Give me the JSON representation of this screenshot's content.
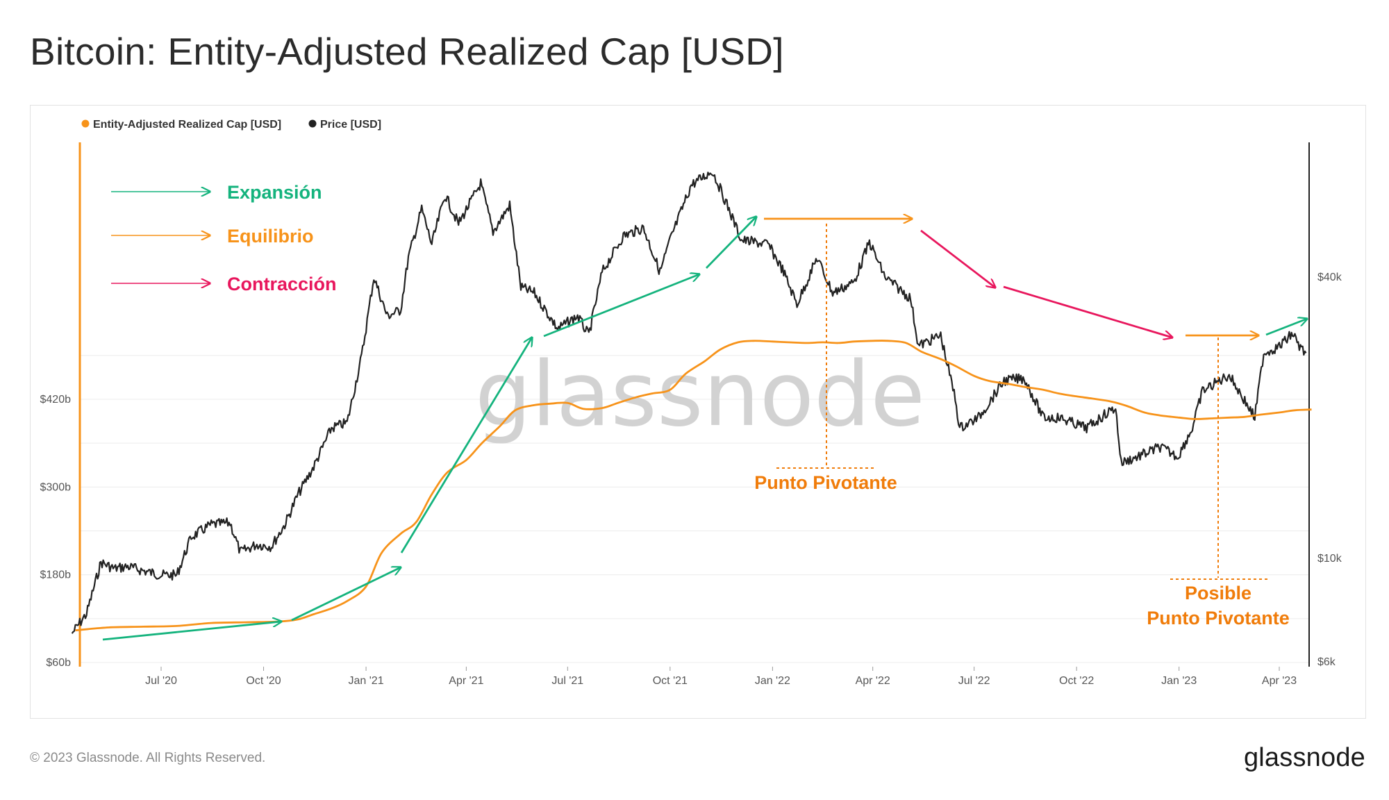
{
  "title": "Bitcoin: Entity-Adjusted Realized Cap [USD]",
  "footer": "© 2023 Glassnode. All Rights Reserved.",
  "brand": "glassnode",
  "watermark": "glassnode",
  "colors": {
    "cap": "#f7931a",
    "price": "#222222",
    "expansion": "#14b37d",
    "equilibrium": "#f7931a",
    "contraction": "#e8175d",
    "annotation": "#f07c0a"
  },
  "chart_data": {
    "type": "line",
    "legend": [
      "Entity-Adjusted Realized Cap [USD]",
      "Price [USD]"
    ],
    "legend_position": "top-left",
    "x_ticks": [
      "Jul '20",
      "Oct '20",
      "Jan '21",
      "Apr '21",
      "Jul '21",
      "Oct '21",
      "Jan '22",
      "Apr '22",
      "Jul '22",
      "Oct '22",
      "Jan '23",
      "Apr '23"
    ],
    "y_left_ticks": [
      "$60b",
      "$180b",
      "$300b",
      "$420b"
    ],
    "y_right_ticks": [
      "$6k",
      "$10k",
      "$40k"
    ],
    "y_left_scale": "linear",
    "y_right_scale": "log",
    "grid": true,
    "series": [
      {
        "name": "Entity-Adjusted Realized Cap [USD]",
        "axis": "left",
        "unit": "USD billions",
        "points": [
          [
            "2020-04-15",
            104
          ],
          [
            "2020-05-15",
            108
          ],
          [
            "2020-06-15",
            109
          ],
          [
            "2020-07-15",
            110
          ],
          [
            "2020-08-15",
            114
          ],
          [
            "2020-09-15",
            115
          ],
          [
            "2020-10-15",
            116
          ],
          [
            "2020-11-01",
            119
          ],
          [
            "2020-11-15",
            126
          ],
          [
            "2020-12-01",
            134
          ],
          [
            "2020-12-15",
            144
          ],
          [
            "2021-01-01",
            164
          ],
          [
            "2021-01-15",
            210
          ],
          [
            "2021-02-01",
            236
          ],
          [
            "2021-02-15",
            252
          ],
          [
            "2021-03-01",
            290
          ],
          [
            "2021-03-15",
            320
          ],
          [
            "2021-04-01",
            337
          ],
          [
            "2021-04-15",
            360
          ],
          [
            "2021-05-01",
            383
          ],
          [
            "2021-05-15",
            405
          ],
          [
            "2021-06-01",
            412
          ],
          [
            "2021-06-15",
            414
          ],
          [
            "2021-07-01",
            415
          ],
          [
            "2021-07-15",
            407
          ],
          [
            "2021-08-01",
            408
          ],
          [
            "2021-08-15",
            415
          ],
          [
            "2021-09-01",
            423
          ],
          [
            "2021-09-15",
            428
          ],
          [
            "2021-10-01",
            433
          ],
          [
            "2021-10-15",
            455
          ],
          [
            "2021-11-01",
            472
          ],
          [
            "2021-11-15",
            488
          ],
          [
            "2021-12-01",
            498
          ],
          [
            "2021-12-15",
            500
          ],
          [
            "2022-01-01",
            499
          ],
          [
            "2022-01-15",
            498
          ],
          [
            "2022-02-01",
            497
          ],
          [
            "2022-02-15",
            498
          ],
          [
            "2022-03-01",
            497
          ],
          [
            "2022-03-15",
            499
          ],
          [
            "2022-04-01",
            500
          ],
          [
            "2022-04-15",
            500
          ],
          [
            "2022-05-01",
            497
          ],
          [
            "2022-05-15",
            485
          ],
          [
            "2022-06-01",
            475
          ],
          [
            "2022-06-15",
            465
          ],
          [
            "2022-07-01",
            452
          ],
          [
            "2022-07-15",
            445
          ],
          [
            "2022-08-01",
            441
          ],
          [
            "2022-08-15",
            437
          ],
          [
            "2022-09-01",
            433
          ],
          [
            "2022-09-15",
            428
          ],
          [
            "2022-10-01",
            424
          ],
          [
            "2022-10-15",
            421
          ],
          [
            "2022-11-01",
            417
          ],
          [
            "2022-11-15",
            411
          ],
          [
            "2022-12-01",
            402
          ],
          [
            "2022-12-15",
            398
          ],
          [
            "2023-01-01",
            395
          ],
          [
            "2023-01-15",
            393
          ],
          [
            "2023-02-01",
            394
          ],
          [
            "2023-02-15",
            395
          ],
          [
            "2023-03-01",
            396
          ],
          [
            "2023-03-15",
            399
          ],
          [
            "2023-04-01",
            402
          ],
          [
            "2023-04-15",
            405
          ],
          [
            "2023-04-30",
            406
          ]
        ]
      },
      {
        "name": "Price [USD]",
        "axis": "right",
        "unit": "USD",
        "points": [
          [
            "2020-04-12",
            6900
          ],
          [
            "2020-04-25",
            7600
          ],
          [
            "2020-05-08",
            9800
          ],
          [
            "2020-05-20",
            9500
          ],
          [
            "2020-06-01",
            9600
          ],
          [
            "2020-06-15",
            9400
          ],
          [
            "2020-07-01",
            9200
          ],
          [
            "2020-07-15",
            9200
          ],
          [
            "2020-07-28",
            11100
          ],
          [
            "2020-08-15",
            11800
          ],
          [
            "2020-09-01",
            11900
          ],
          [
            "2020-09-10",
            10300
          ],
          [
            "2020-09-25",
            10700
          ],
          [
            "2020-10-08",
            10600
          ],
          [
            "2020-10-20",
            11800
          ],
          [
            "2020-11-01",
            13700
          ],
          [
            "2020-11-15",
            15700
          ],
          [
            "2020-12-01",
            19000
          ],
          [
            "2020-12-15",
            19500
          ],
          [
            "2020-12-28",
            27000
          ],
          [
            "2021-01-08",
            40000
          ],
          [
            "2021-01-20",
            33000
          ],
          [
            "2021-02-01",
            34000
          ],
          [
            "2021-02-08",
            44000
          ],
          [
            "2021-02-20",
            56000
          ],
          [
            "2021-03-01",
            47000
          ],
          [
            "2021-03-13",
            60000
          ],
          [
            "2021-03-25",
            52000
          ],
          [
            "2021-04-14",
            63500
          ],
          [
            "2021-04-25",
            50000
          ],
          [
            "2021-05-10",
            57000
          ],
          [
            "2021-05-20",
            38000
          ],
          [
            "2021-06-01",
            37000
          ],
          [
            "2021-06-22",
            31000
          ],
          [
            "2021-07-10",
            33000
          ],
          [
            "2021-07-20",
            30000
          ],
          [
            "2021-08-01",
            41000
          ],
          [
            "2021-08-20",
            49000
          ],
          [
            "2021-09-07",
            51000
          ],
          [
            "2021-09-22",
            41000
          ],
          [
            "2021-10-01",
            48000
          ],
          [
            "2021-10-20",
            63000
          ],
          [
            "2021-11-08",
            67500
          ],
          [
            "2021-11-20",
            58000
          ],
          [
            "2021-12-04",
            48000
          ],
          [
            "2021-12-28",
            47000
          ],
          [
            "2022-01-10",
            41500
          ],
          [
            "2022-01-23",
            35000
          ],
          [
            "2022-02-10",
            44000
          ],
          [
            "2022-02-24",
            37000
          ],
          [
            "2022-03-15",
            39000
          ],
          [
            "2022-03-29",
            47500
          ],
          [
            "2022-04-12",
            40000
          ],
          [
            "2022-05-05",
            36000
          ],
          [
            "2022-05-12",
            28500
          ],
          [
            "2022-06-01",
            30000
          ],
          [
            "2022-06-14",
            22000
          ],
          [
            "2022-06-18",
            19000
          ],
          [
            "2022-07-05",
            20000
          ],
          [
            "2022-07-28",
            24000
          ],
          [
            "2022-08-15",
            24300
          ],
          [
            "2022-09-01",
            20000
          ],
          [
            "2022-09-15",
            20000
          ],
          [
            "2022-10-10",
            19000
          ],
          [
            "2022-10-30",
            20600
          ],
          [
            "2022-11-05",
            21000
          ],
          [
            "2022-11-10",
            16000
          ],
          [
            "2022-11-25",
            16500
          ],
          [
            "2022-12-15",
            17300
          ],
          [
            "2022-12-31",
            16500
          ],
          [
            "2023-01-13",
            19000
          ],
          [
            "2023-01-22",
            22800
          ],
          [
            "2023-02-15",
            24700
          ],
          [
            "2023-03-10",
            20000
          ],
          [
            "2023-03-18",
            27500
          ],
          [
            "2023-04-01",
            28400
          ],
          [
            "2023-04-13",
            30300
          ],
          [
            "2023-04-20",
            28200
          ],
          [
            "2023-04-25",
            27500
          ]
        ]
      }
    ],
    "trend_legend": [
      {
        "key": "expansion",
        "label": "Expansión"
      },
      {
        "key": "equilibrium",
        "label": "Equilibrio"
      },
      {
        "key": "contraction",
        "label": "Contracción"
      }
    ],
    "annotations": {
      "pivot": "Punto Pivotante",
      "possible_pivot_line1": "Posible",
      "possible_pivot_line2": "Punto Pivotante"
    }
  }
}
